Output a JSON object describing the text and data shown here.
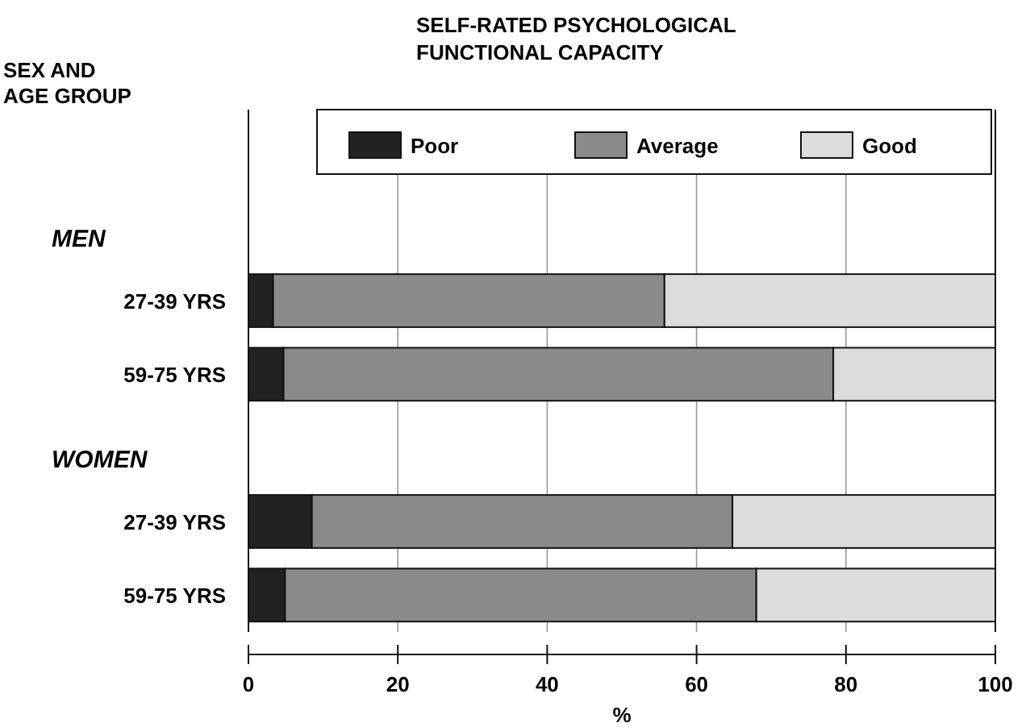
{
  "chart_data": {
    "type": "bar",
    "orientation": "horizontal",
    "stacked": true,
    "title": "SELF-RATED PSYCHOLOGICAL\nFUNCTIONAL CAPACITY",
    "xlabel": "%",
    "categories": [
      "27-39 YRS",
      "59-75 YRS",
      "27-39 YRS",
      "59-75 YRS"
    ],
    "series": [
      {
        "name": "Poor",
        "color": "#222222",
        "values": [
          3.3,
          4.7,
          8.5,
          4.9
        ]
      },
      {
        "name": "Average",
        "color": "#8a8a8a",
        "values": [
          52.4,
          73.6,
          56.3,
          63.1
        ]
      },
      {
        "name": "Good",
        "color": "#dcdcdc",
        "values": [
          44.3,
          21.7,
          35.2,
          32
        ]
      }
    ],
    "annotations": [
      "SEX AND\nAGE GROUP",
      "MEN",
      "WOMEN"
    ],
    "xlim": [
      0,
      100
    ],
    "xticks": [
      0,
      20,
      40,
      60,
      80,
      100
    ],
    "grid": "x",
    "legend": "top"
  }
}
